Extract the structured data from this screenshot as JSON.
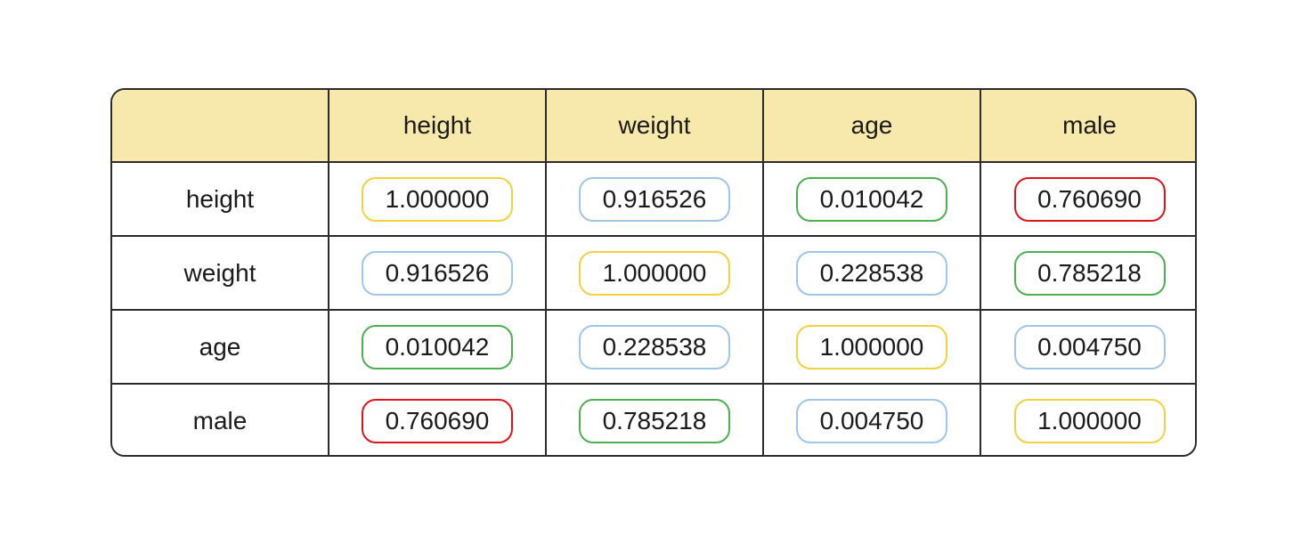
{
  "chart_data": {
    "type": "table",
    "columns": [
      "height",
      "weight",
      "age",
      "male"
    ],
    "rows": [
      {
        "label": "height",
        "values": [
          "1.000000",
          "0.916526",
          "0.010042",
          "0.760690"
        ],
        "colors": [
          "#f4d03f",
          "#9fc5e8",
          "#4caf50",
          "#e0121b"
        ]
      },
      {
        "label": "weight",
        "values": [
          "0.916526",
          "1.000000",
          "0.228538",
          "0.785218"
        ],
        "colors": [
          "#9fc5e8",
          "#f4d03f",
          "#9fc5e8",
          "#4caf50"
        ]
      },
      {
        "label": "age",
        "values": [
          "0.010042",
          "0.228538",
          "1.000000",
          "0.004750"
        ],
        "colors": [
          "#4caf50",
          "#9fc5e8",
          "#f4d03f",
          "#9fc5e8"
        ]
      },
      {
        "label": "male",
        "values": [
          "0.760690",
          "0.785218",
          "0.004750",
          "1.000000"
        ],
        "colors": [
          "#e0121b",
          "#4caf50",
          "#9fc5e8",
          "#f4d03f"
        ]
      }
    ]
  },
  "colors": {
    "header_background": "#f7e8ab",
    "border": "#2b2b2b"
  }
}
